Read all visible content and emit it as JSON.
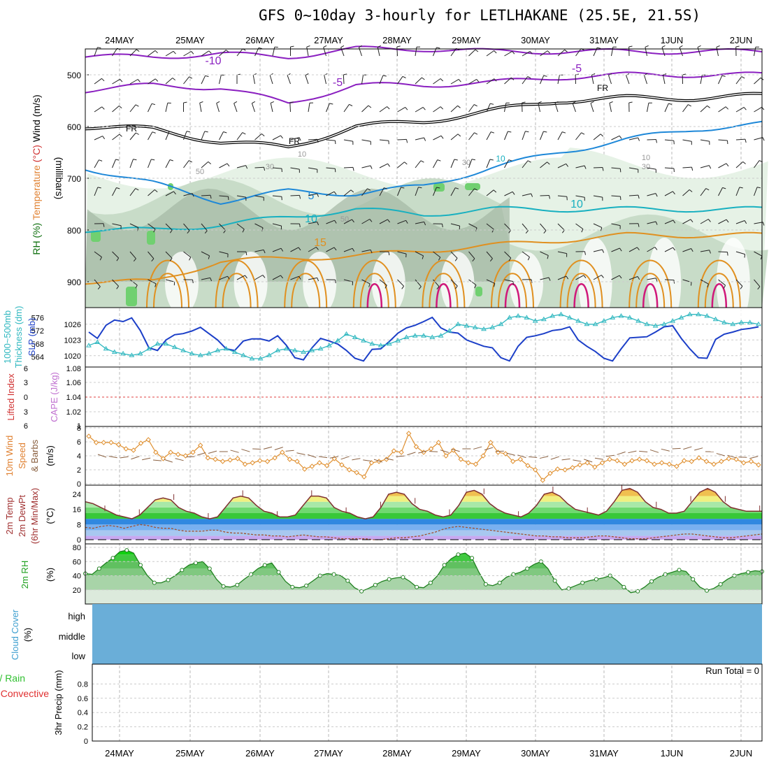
{
  "title": "GFS 0~10day 3-hourly for LETLHAKANE (25.5E, 21.5S)",
  "dates": [
    "24MAY",
    "25MAY",
    "26MAY",
    "27MAY",
    "28MAY",
    "29MAY",
    "30MAY",
    "31MAY",
    "1JUN",
    "2JUN"
  ],
  "colors": {
    "temp_contour_purple": "#8a1fc0",
    "temp_contour_blue": "#1e88d8",
    "temp_contour_cyan": "#18b0c0",
    "temp_contour_orange": "#e09020",
    "temp_contour_magenta": "#d0187a",
    "slp_line": "#1c3fc8",
    "thickness_line": "#30b8c0",
    "wind_speed_line": "#e09030",
    "rh_green": "#40c040",
    "cloud_blue": "#6aaed8"
  },
  "chart_data": [
    {
      "id": "upper_air",
      "type": "heatmap",
      "ylabel_parts": [
        "RH (%)",
        "Temperature",
        "(°C)",
        "Wind",
        "(m/s)"
      ],
      "ylabel2": "(millibars)",
      "yticks": [
        "500",
        "600",
        "700",
        "800",
        "900"
      ],
      "contour_labels": [
        "-10",
        "-5",
        "-5",
        "FR",
        "FR",
        "FR",
        "5",
        "10",
        "10",
        "15",
        "10",
        "30",
        "50",
        "50",
        "30",
        "10",
        "30",
        "10"
      ],
      "isotherms": [
        {
          "name": "-10",
          "level_mb": [
            465,
            465,
            460,
            465,
            450,
            450,
            455,
            455,
            455,
            455,
            455
          ]
        },
        {
          "name": "-5",
          "level_mb": [
            530,
            520,
            525,
            555,
            520,
            520,
            515,
            505,
            500,
            500,
            500
          ]
        },
        {
          "name": "FR",
          "level_mb": [
            600,
            605,
            630,
            640,
            600,
            590,
            570,
            550,
            545,
            545,
            540
          ]
        },
        {
          "name": "5",
          "level_mb": [
            680,
            710,
            745,
            725,
            730,
            715,
            680,
            650,
            625,
            605,
            595
          ]
        },
        {
          "name": "10",
          "level_mb": [
            800,
            800,
            790,
            775,
            760,
            770,
            760,
            760,
            760,
            760,
            760
          ]
        },
        {
          "name": "15",
          "level_mb": [
            900,
            900,
            860,
            855,
            850,
            840,
            830,
            820,
            810,
            810,
            810
          ]
        }
      ]
    },
    {
      "id": "slp_thickness",
      "type": "line",
      "ylabel_left": [
        "1000~500mb",
        "Thickness (dm)"
      ],
      "ylabel_right": "SLP (mb)",
      "yticks_left": [
        "576",
        "572",
        "568",
        "564"
      ],
      "yticks_right": [
        "1026",
        "1023",
        "1020"
      ],
      "series": [
        {
          "name": "SLP (mb)",
          "values": [
            1024.5,
            1023.3,
            1025.8,
            1026.8,
            1026.5,
            1027.2,
            1024.8,
            1021.5,
            1021.0,
            1023.0,
            1024.0,
            1024.2,
            1024.7,
            1025.4,
            1024.2,
            1023.0,
            1021.3,
            1021.0,
            1022.8,
            1023.2,
            1023.2,
            1022.8,
            1023.8,
            1022.0,
            1019.6,
            1019.2,
            1021.5,
            1023.3,
            1022.8,
            1022.2,
            1021.0,
            1019.5,
            1019.0,
            1021.2,
            1021.3,
            1022.7,
            1024.3,
            1025.3,
            1025.8,
            1026.5,
            1027.3,
            1025.3,
            1024.5,
            1024.3,
            1023.0,
            1022.4,
            1021.8,
            1021.5,
            1019.6,
            1019.0,
            1021.8,
            1023.5,
            1023.8,
            1024.2,
            1024.8,
            1025.0,
            1025.5,
            1023.0,
            1021.8,
            1020.8,
            1019.5,
            1019.0,
            1021.3,
            1023.4,
            1023.5,
            1023.6,
            1024.5,
            1025.5,
            1025.7,
            1023.3,
            1021.3,
            1019.6,
            1019.5,
            1023.1,
            1024.1,
            1024.5,
            1025.0,
            1025.2,
            1025.5
          ]
        },
        {
          "name": "1000~500mb Thickness",
          "values": [
            567.5,
            568.5,
            566.5,
            565.5,
            565,
            564.5,
            565,
            566.5,
            568,
            568,
            567,
            566,
            565,
            564.5,
            565,
            566,
            566.5,
            565.5,
            564.5,
            563.5,
            563.5,
            564.5,
            566,
            566.5,
            566,
            565.5,
            566,
            566.5,
            567.5,
            569,
            571,
            570,
            569,
            568,
            567.5,
            568,
            569,
            570,
            570.5,
            570.5,
            570,
            570.5,
            572,
            574,
            573.5,
            573,
            572.5,
            573,
            574,
            576,
            576.5,
            576,
            575,
            575.5,
            576.5,
            577,
            576,
            575,
            574,
            574,
            575,
            576,
            576.5,
            576,
            575,
            574,
            573.5,
            574,
            575,
            576,
            577,
            577,
            576.5,
            575.5,
            574.5,
            574,
            574.5,
            574.5,
            574
          ]
        }
      ]
    },
    {
      "id": "stability",
      "type": "line",
      "ylabel_left": "Lifted Index",
      "ylabel_right": "CAPE (J/kg)",
      "yticks_left": [
        "6",
        "3",
        "0",
        "3",
        "6"
      ],
      "yticks_right": [
        "1.08",
        "1.06",
        "1.04",
        "1.02",
        "1"
      ],
      "series": [
        {
          "name": "Lifted Index",
          "values": [
            0
          ]
        }
      ]
    },
    {
      "id": "wind10m",
      "type": "line",
      "ylabel_parts": [
        "10m Wind",
        "Speed",
        "& Barbs"
      ],
      "yunit": "(m/s)",
      "yticks": [
        "8",
        "6",
        "4",
        "2",
        "0"
      ],
      "ylim": [
        0,
        8
      ],
      "series": [
        {
          "name": "10m Wind Speed",
          "values": [
            6.8,
            5.9,
            5.9,
            5.9,
            5.6,
            5.0,
            4.8,
            5.8,
            6.3,
            4.5,
            3.6,
            4.5,
            4.2,
            4.0,
            4.5,
            5.5,
            3.7,
            3.5,
            3.2,
            3.4,
            3.6,
            2.8,
            3.0,
            3.3,
            3.2,
            3.7,
            4.5,
            3.5,
            3.2,
            2.1,
            2.5,
            3.0,
            2.6,
            3.6,
            2.7,
            2.0,
            1.6,
            1.0,
            3.0,
            3.2,
            3.5,
            4.7,
            4.5,
            7.2,
            5.3,
            4.5,
            5.0,
            5.9,
            4.0,
            4.8,
            3.5,
            3.0,
            2.8,
            4.0,
            5.9,
            4.5,
            4.3,
            3.2,
            3.5,
            2.6,
            2.0,
            0.5,
            1.5,
            2.1,
            2.0,
            2.3,
            2.7,
            3.0,
            2.4,
            3.0,
            3.5,
            3.3,
            2.8,
            3.3,
            3.5,
            3.3,
            2.8,
            3.0,
            2.8,
            2.5,
            3.3,
            3.2,
            3.7,
            3.2,
            2.8,
            3.2,
            3.6,
            3.5,
            3.0,
            3.2,
            2.7
          ]
        }
      ]
    },
    {
      "id": "temp2m",
      "type": "area",
      "ylabel_parts": [
        "2m Temp",
        "2m DewPt",
        "(6hr Min/Max)"
      ],
      "yunit": "(°C)",
      "yticks": [
        "24",
        "16",
        "8",
        "0"
      ],
      "ylim": [
        -2,
        28
      ],
      "series": [
        {
          "name": "2m Temp",
          "values": [
            20,
            19,
            17,
            15,
            13,
            12,
            11,
            13,
            17,
            21,
            22,
            21,
            17,
            15,
            14,
            12,
            11,
            12,
            17,
            22,
            23,
            22,
            18,
            15,
            14,
            12,
            12,
            13,
            18,
            23,
            23,
            22,
            17,
            15,
            14,
            12,
            11,
            12,
            17,
            24,
            25,
            24,
            19,
            16,
            15,
            13,
            12,
            13,
            18,
            25,
            26,
            24,
            19,
            16,
            14,
            13,
            12,
            14,
            18,
            24,
            25,
            23,
            19,
            16,
            15,
            14,
            13,
            15,
            20,
            26,
            27,
            25,
            20,
            17,
            16,
            14,
            14,
            15,
            20,
            25,
            27,
            25,
            20,
            17,
            16,
            15,
            15,
            15
          ]
        },
        {
          "name": "2m DewPt",
          "values": [
            6.5,
            6.0,
            7.0,
            7.5,
            7.0,
            6.0,
            7.0,
            8.0,
            7.5,
            6.5,
            6.0,
            6.0,
            5.0,
            4.5,
            4.5,
            4.5,
            5.0,
            5.0,
            4.0,
            3.5,
            3.5,
            3.0,
            2.5,
            2.5,
            2.0,
            2.0,
            1.5,
            2.0,
            2.5,
            2.0,
            1.5,
            1.5,
            1.0,
            0.5,
            0.5,
            0.5,
            0.5,
            0.0,
            0.0,
            0.5,
            1.0,
            1.0,
            1.5,
            2.0,
            3.0,
            4.0,
            5.5,
            6.5,
            7.0,
            6.5,
            6.0,
            5.5,
            5.0,
            4.5,
            4.0,
            3.5,
            3.0,
            2.5,
            2.0,
            2.0,
            1.5,
            1.5,
            1.0,
            1.0,
            1.0,
            1.5,
            2.0,
            2.0,
            1.5,
            1.0,
            0.5,
            0.5,
            0.5,
            1.0,
            1.5,
            2.0,
            2.5,
            3.0,
            3.0,
            2.5,
            2.0,
            1.5,
            1.0,
            1.0,
            1.5,
            2.0,
            2.5,
            3.0
          ]
        }
      ]
    },
    {
      "id": "rh2m",
      "type": "area",
      "ylabel": "2m RH",
      "yunit": "(%)",
      "yticks": [
        "80",
        "60",
        "40",
        "20"
      ],
      "ylim": [
        0,
        85
      ],
      "series": [
        {
          "name": "2m RH",
          "values": [
            43,
            42,
            50,
            58,
            65,
            74,
            76,
            72,
            55,
            40,
            30,
            30,
            34,
            40,
            48,
            55,
            58,
            60,
            50,
            35,
            25,
            24,
            27,
            35,
            42,
            50,
            55,
            58,
            45,
            32,
            24,
            23,
            26,
            33,
            40,
            43,
            42,
            40,
            33,
            23,
            18,
            22,
            27,
            32,
            35,
            37,
            38,
            32,
            24,
            23,
            30,
            40,
            55,
            64,
            70,
            72,
            65,
            45,
            28,
            26,
            30,
            38,
            42,
            45,
            50,
            56,
            60,
            50,
            33,
            20,
            22,
            26,
            30,
            33,
            35,
            37,
            40,
            33,
            24,
            16,
            18,
            24,
            32,
            38,
            42,
            45,
            48,
            46,
            35,
            24,
            19,
            22,
            28,
            35,
            40,
            43,
            45,
            47,
            46
          ]
        }
      ]
    },
    {
      "id": "cloud",
      "type": "area",
      "ylabel": "Cloud Cover",
      "yunit": "(%)",
      "yticks": [
        "high",
        "middle",
        "low"
      ]
    },
    {
      "id": "precip",
      "type": "bar",
      "ylabel_left": [
        "Total / Rain",
        "Convective"
      ],
      "ylabel2": "3hr Precip (mm)",
      "yticks": [
        "0.8",
        "0.6",
        "0.4",
        "0.2",
        "0"
      ],
      "ylim": [
        0,
        1
      ],
      "run_total": "Run Total = 0",
      "values": []
    }
  ]
}
